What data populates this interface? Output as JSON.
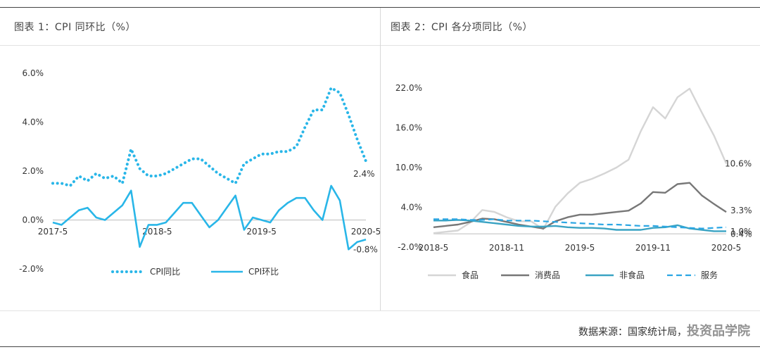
{
  "charts": [
    {
      "title": "图表 1：CPI 同环比（%）",
      "chart_data": {
        "type": "line",
        "x_ticks": [
          "2017-5",
          "2018-5",
          "2019-5",
          "2020-5"
        ],
        "ylim": [
          -2,
          6
        ],
        "y_ticks": [
          "6.0%",
          "4.0%",
          "2.0%",
          "0.0%",
          "-2.0%"
        ],
        "y_tick_values": [
          6,
          4,
          2,
          0,
          -2
        ],
        "grid": false,
        "legend": "bottom",
        "x": [
          "2017-5",
          "2017-6",
          "2017-7",
          "2017-8",
          "2017-9",
          "2017-10",
          "2017-11",
          "2017-12",
          "2018-1",
          "2018-2",
          "2018-3",
          "2018-4",
          "2018-5",
          "2018-6",
          "2018-7",
          "2018-8",
          "2018-9",
          "2018-10",
          "2018-11",
          "2018-12",
          "2019-1",
          "2019-2",
          "2019-3",
          "2019-4",
          "2019-5",
          "2019-6",
          "2019-7",
          "2019-8",
          "2019-9",
          "2019-10",
          "2019-11",
          "2019-12",
          "2020-1",
          "2020-2",
          "2020-3",
          "2020-4",
          "2020-5"
        ],
        "series": [
          {
            "name": "CPI同比",
            "style": "dotted",
            "color": "#29b6e8",
            "values": [
              1.5,
              1.5,
              1.4,
              1.8,
              1.6,
              1.9,
              1.7,
              1.8,
              1.5,
              2.9,
              2.1,
              1.8,
              1.8,
              1.9,
              2.1,
              2.3,
              2.5,
              2.5,
              2.2,
              1.9,
              1.7,
              1.5,
              2.3,
              2.5,
              2.7,
              2.7,
              2.8,
              2.8,
              3.0,
              3.8,
              4.5,
              4.5,
              5.4,
              5.2,
              4.3,
              3.3,
              2.4
            ],
            "end_label": "2.4%"
          },
          {
            "name": "CPI环比",
            "style": "solid",
            "color": "#29b6e8",
            "values": [
              -0.1,
              -0.2,
              0.1,
              0.4,
              0.5,
              0.1,
              0.0,
              0.3,
              0.6,
              1.2,
              -1.1,
              -0.2,
              -0.2,
              -0.1,
              0.3,
              0.7,
              0.7,
              0.2,
              -0.3,
              0.0,
              0.5,
              1.0,
              -0.4,
              0.1,
              0.0,
              -0.1,
              0.4,
              0.7,
              0.9,
              0.9,
              0.4,
              0.0,
              1.4,
              0.8,
              -1.2,
              -0.9,
              -0.8
            ],
            "end_label": "-0.8%"
          }
        ]
      }
    },
    {
      "title": "图表 2：CPI 各分项同比（%）",
      "chart_data": {
        "type": "line",
        "x_ticks": [
          "2018-5",
          "2018-11",
          "2019-5",
          "2019-11",
          "2020-5"
        ],
        "ylim": [
          -2,
          22
        ],
        "y_ticks": [
          "22.0%",
          "16.0%",
          "10.0%",
          "4.0%",
          "-2.0%"
        ],
        "y_tick_values": [
          22,
          16,
          10,
          4,
          -2
        ],
        "grid": false,
        "legend": "bottom",
        "x": [
          "2018-5",
          "2018-6",
          "2018-7",
          "2018-8",
          "2018-9",
          "2018-10",
          "2018-11",
          "2018-12",
          "2019-1",
          "2019-2",
          "2019-3",
          "2019-4",
          "2019-5",
          "2019-6",
          "2019-7",
          "2019-8",
          "2019-9",
          "2019-10",
          "2019-11",
          "2019-12",
          "2020-1",
          "2020-2",
          "2020-3",
          "2020-4",
          "2020-5"
        ],
        "series": [
          {
            "name": "食品",
            "style": "solid",
            "color": "#d5d5d5",
            "values": [
              0.1,
              0.3,
              0.5,
              1.7,
              3.6,
              3.3,
              2.5,
              1.9,
              1.9,
              0.7,
              4.1,
              6.1,
              7.7,
              8.3,
              9.1,
              10.0,
              11.2,
              15.5,
              19.1,
              17.4,
              20.6,
              21.9,
              18.3,
              14.8,
              10.6
            ],
            "end_label": "10.6%"
          },
          {
            "name": "消费品",
            "style": "solid",
            "color": "#777777",
            "values": [
              1.0,
              1.2,
              1.4,
              1.8,
              2.3,
              2.2,
              1.8,
              1.4,
              1.1,
              0.8,
              1.9,
              2.5,
              2.9,
              2.9,
              3.1,
              3.3,
              3.5,
              4.6,
              6.3,
              6.2,
              7.5,
              7.7,
              5.8,
              4.5,
              3.3
            ],
            "end_label": "3.3%"
          },
          {
            "name": "非食品",
            "style": "solid",
            "color": "#3aa3c3",
            "values": [
              2.0,
              2.0,
              2.1,
              2.0,
              1.8,
              1.6,
              1.4,
              1.2,
              1.1,
              1.1,
              1.2,
              1.0,
              0.9,
              0.9,
              0.8,
              0.6,
              0.6,
              0.6,
              0.9,
              1.0,
              1.3,
              0.8,
              0.6,
              0.4,
              0.4
            ],
            "end_label": "0.4%"
          },
          {
            "name": "服务",
            "style": "dashed",
            "color": "#2aa6e4",
            "values": [
              2.2,
              2.2,
              2.2,
              2.1,
              2.1,
              2.2,
              2.0,
              2.0,
              2.0,
              1.9,
              1.8,
              1.7,
              1.6,
              1.5,
              1.4,
              1.4,
              1.3,
              1.2,
              1.2,
              1.1,
              1.0,
              0.9,
              0.8,
              0.9,
              1.0
            ],
            "end_label": "1.0%"
          }
        ]
      }
    }
  ],
  "footer": {
    "source_text": "数据来源：国家统计局，",
    "watermark": "投资品学院"
  }
}
